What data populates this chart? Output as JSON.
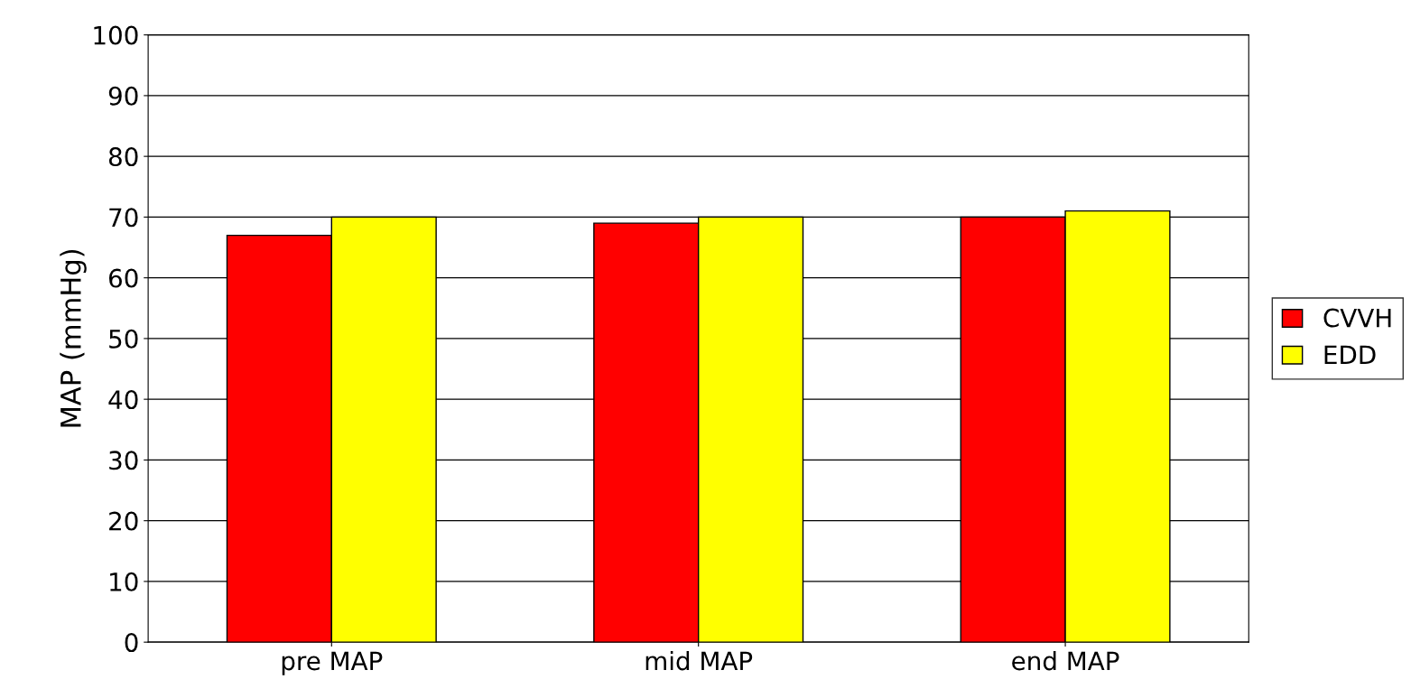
{
  "chart_data": {
    "type": "bar",
    "ylabel": "MAP (mmHg)",
    "categories": [
      "pre MAP",
      "mid MAP",
      "end MAP"
    ],
    "series": [
      {
        "name": "CVVH",
        "color": "#ff0000",
        "values": [
          67,
          69,
          70
        ]
      },
      {
        "name": "EDD",
        "color": "#ffff00",
        "values": [
          70,
          70,
          71
        ]
      }
    ],
    "ylim": [
      0,
      100
    ],
    "yticks": [
      0,
      10,
      20,
      30,
      40,
      50,
      60,
      70,
      80,
      90,
      100
    ],
    "grid": "y",
    "legend": "right"
  }
}
